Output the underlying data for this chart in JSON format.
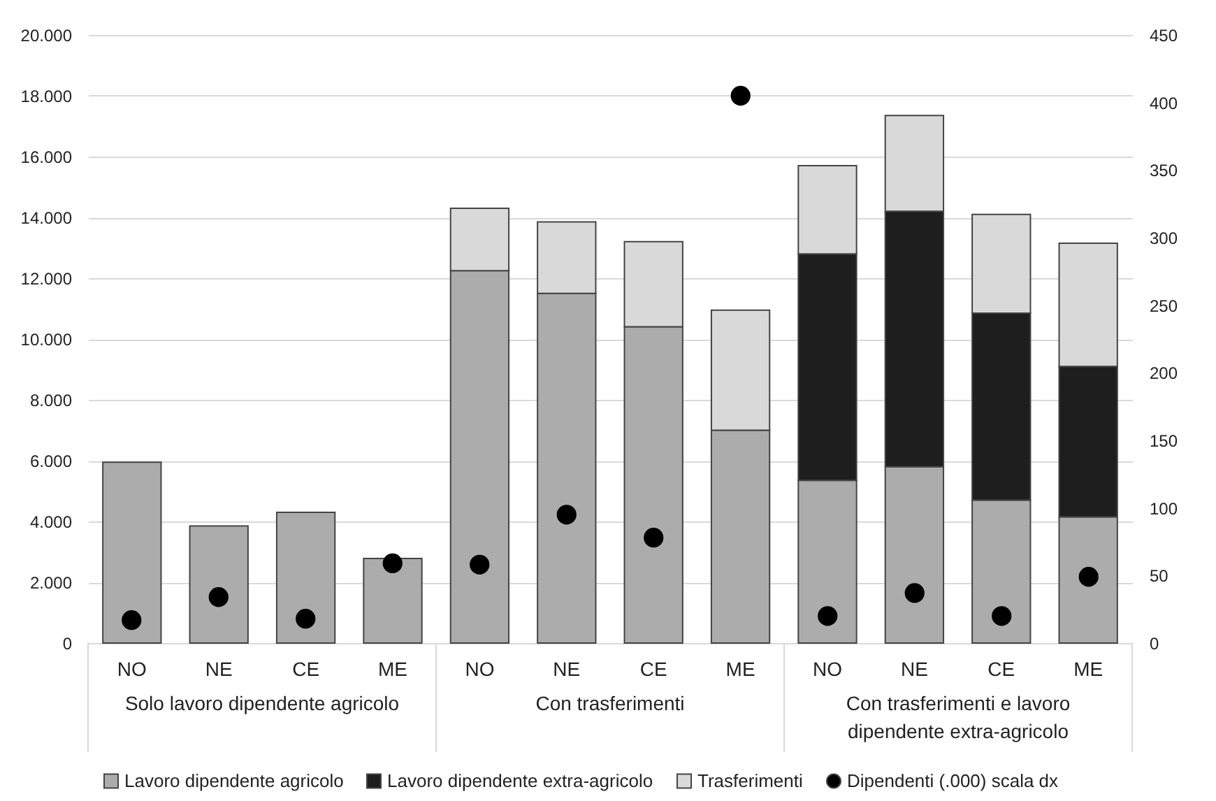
{
  "chart_data": {
    "type": "bar",
    "stacked": true,
    "categories": [
      "NO",
      "NE",
      "CE",
      "ME",
      "NO",
      "NE",
      "CE",
      "ME",
      "NO",
      "NE",
      "CE",
      "ME"
    ],
    "series": [
      {
        "name": "Lavoro dipendente agricolo",
        "color": "#acacac",
        "values": [
          5950,
          3850,
          4300,
          2780,
          12250,
          11500,
          10400,
          7000,
          5350,
          5800,
          4700,
          4150
        ]
      },
      {
        "name": "Lavoro dipendente extra-agricolo",
        "color": "#1e1e1e",
        "values": [
          null,
          null,
          null,
          null,
          null,
          null,
          null,
          null,
          7450,
          8400,
          6150,
          4950
        ]
      },
      {
        "name": "Trasferimenti",
        "color": "#d9d9d9",
        "values": [
          null,
          null,
          null,
          null,
          2050,
          2350,
          2800,
          3950,
          2900,
          3150,
          3250,
          4050
        ]
      },
      {
        "name": "Dipendenti (.000) scala dx",
        "color": "#000000",
        "type": "scatter",
        "axis": "y2",
        "marker": "circle",
        "values": [
          17,
          34,
          18,
          59,
          58,
          95,
          78,
          405,
          20,
          37,
          20,
          49
        ]
      }
    ],
    "ylim": [
      0,
      20000
    ],
    "yticks": [
      0,
      {
        "value": 2000,
        "label": "2.000"
      },
      {
        "value": 4000,
        "label": "4.000"
      },
      {
        "value": 6000,
        "label": "6.000"
      },
      {
        "value": 8000,
        "label": "8.000"
      },
      {
        "value": 10000,
        "label": "10.000"
      },
      {
        "value": 12000,
        "label": "12.000"
      },
      {
        "value": 14000,
        "label": "14.000"
      },
      {
        "value": 16000,
        "label": "16.000"
      },
      {
        "value": 18000,
        "label": "18.000"
      },
      {
        "value": 20000,
        "label": "20.000"
      }
    ],
    "y2lim": [
      0,
      450
    ],
    "y2ticks": [
      0,
      50,
      100,
      150,
      200,
      250,
      300,
      350,
      400,
      450
    ],
    "grid": "y",
    "legend": "bottom",
    "annotations": [
      "Solo lavoro dipendente agricolo",
      "Con trasferimenti",
      "Con trasferimenti e lavoro dipendente extra-agricolo"
    ]
  }
}
